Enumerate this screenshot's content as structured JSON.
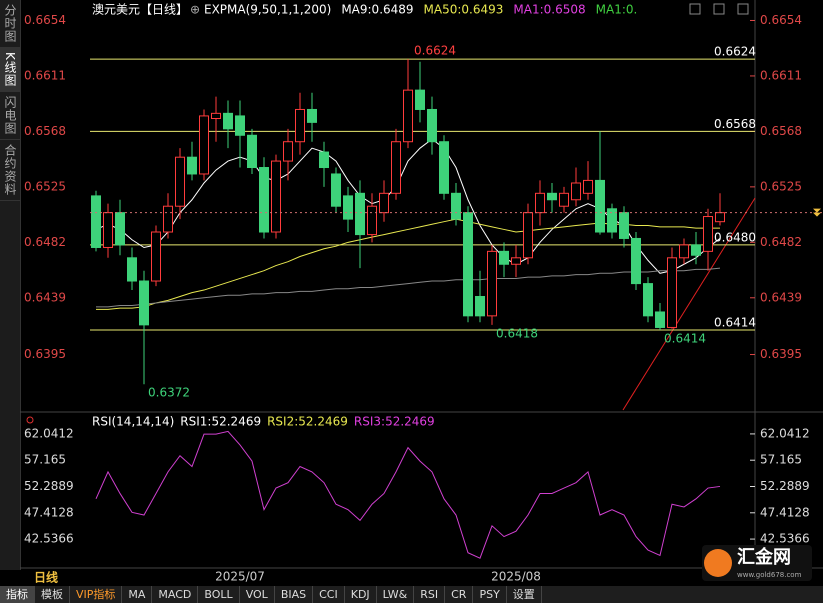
{
  "tabs_left": [
    "分时图",
    "K线图",
    "闪电图",
    "合约资料"
  ],
  "chart_data": [
    {
      "type": "candlestick",
      "title": "澳元美元【日线】",
      "legend": [
        "EXPMA(9,50,1,1,200)",
        "MA9:0.6489",
        "MA50:0.6493",
        "MA1:0.6508",
        "MA1:0."
      ],
      "legend_colors": [
        "#ffffff",
        "#ffffff",
        "#e8e850",
        "#e040e0",
        "#40d040"
      ],
      "categories": [
        null,
        null,
        null,
        null,
        null,
        null,
        null,
        null,
        null,
        null,
        null,
        null,
        "2025/07",
        null,
        null,
        null,
        null,
        null,
        null,
        null,
        null,
        null,
        null,
        null,
        null,
        null,
        null,
        null,
        null,
        null,
        null,
        null,
        null,
        null,
        null,
        "2025/08",
        null,
        null,
        null,
        null,
        null,
        null,
        null,
        null,
        null,
        null,
        null,
        null,
        null,
        null,
        null,
        null,
        null
      ],
      "open": [
        0.6518,
        0.6478,
        0.6505,
        0.647,
        0.6452,
        0.6452,
        0.649,
        0.651,
        0.6548,
        0.6535,
        0.6578,
        0.6582,
        0.658,
        0.6565,
        0.654,
        0.649,
        0.6545,
        0.656,
        0.6585,
        0.6552,
        0.6535,
        0.6518,
        0.652,
        0.6488,
        0.6505,
        0.652,
        0.656,
        0.66,
        0.6585,
        0.656,
        0.652,
        0.6505,
        0.644,
        0.6425,
        0.6475,
        0.6465,
        0.647,
        0.6505,
        0.652,
        0.651,
        0.6515,
        0.652,
        0.653,
        0.6508,
        0.6505,
        0.6485,
        0.645,
        0.6428,
        0.6416,
        0.647,
        0.648,
        0.6475,
        0.6498
      ],
      "high": [
        0.6522,
        0.6512,
        0.6515,
        0.6478,
        0.646,
        0.6495,
        0.652,
        0.6555,
        0.656,
        0.6585,
        0.6595,
        0.6592,
        0.6592,
        0.657,
        0.6548,
        0.655,
        0.657,
        0.6598,
        0.6598,
        0.656,
        0.654,
        0.6525,
        0.653,
        0.652,
        0.653,
        0.657,
        0.6624,
        0.6622,
        0.6595,
        0.6565,
        0.6528,
        0.651,
        0.646,
        0.648,
        0.6482,
        0.648,
        0.6512,
        0.653,
        0.6528,
        0.6525,
        0.654,
        0.6545,
        0.6568,
        0.6512,
        0.651,
        0.649,
        0.6455,
        0.6435,
        0.6478,
        0.6485,
        0.649,
        0.6508,
        0.652
      ],
      "low": [
        0.6475,
        0.647,
        0.6472,
        0.6445,
        0.6372,
        0.6448,
        0.6485,
        0.65,
        0.653,
        0.653,
        0.656,
        0.6555,
        0.654,
        0.6535,
        0.6485,
        0.6485,
        0.653,
        0.655,
        0.656,
        0.6525,
        0.6505,
        0.649,
        0.6462,
        0.6482,
        0.6498,
        0.6515,
        0.6555,
        0.6575,
        0.655,
        0.6515,
        0.6495,
        0.642,
        0.642,
        0.6418,
        0.6455,
        0.6455,
        0.6465,
        0.6495,
        0.6505,
        0.6505,
        0.651,
        0.6515,
        0.6488,
        0.6485,
        0.6478,
        0.6445,
        0.642,
        0.6414,
        0.6415,
        0.6465,
        0.6465,
        0.646,
        0.6495
      ],
      "close": [
        0.6478,
        0.6505,
        0.648,
        0.6452,
        0.6418,
        0.649,
        0.651,
        0.6548,
        0.6535,
        0.658,
        0.6582,
        0.657,
        0.6565,
        0.654,
        0.649,
        0.6545,
        0.656,
        0.6585,
        0.6575,
        0.654,
        0.651,
        0.65,
        0.6488,
        0.651,
        0.652,
        0.656,
        0.66,
        0.6585,
        0.656,
        0.652,
        0.65,
        0.6425,
        0.6425,
        0.6475,
        0.6465,
        0.647,
        0.6505,
        0.652,
        0.6515,
        0.652,
        0.6528,
        0.653,
        0.649,
        0.649,
        0.6485,
        0.645,
        0.6425,
        0.6416,
        0.647,
        0.648,
        0.6472,
        0.6502,
        0.6505
      ],
      "lines": [
        {
          "color": "#ffffff",
          "values": [
            0.6492,
            0.6496,
            0.6492,
            0.6484,
            0.6478,
            0.648,
            0.649,
            0.6505,
            0.6515,
            0.6528,
            0.6538,
            0.6545,
            0.6548,
            0.6545,
            0.6532,
            0.653,
            0.6535,
            0.6545,
            0.6555,
            0.6552,
            0.6545,
            0.653,
            0.6518,
            0.6512,
            0.6515,
            0.6525,
            0.6545,
            0.6555,
            0.6562,
            0.6555,
            0.654,
            0.6515,
            0.6495,
            0.648,
            0.647,
            0.6465,
            0.647,
            0.6482,
            0.6492,
            0.65,
            0.6508,
            0.6512,
            0.6508,
            0.65,
            0.6495,
            0.648,
            0.6468,
            0.6458,
            0.646,
            0.6465,
            0.647,
            0.6478,
            0.6485
          ]
        },
        {
          "color": "#e8e850",
          "values": [
            0.643,
            0.643,
            0.6431,
            0.6431,
            0.6432,
            0.6435,
            0.6437,
            0.644,
            0.6443,
            0.6445,
            0.6448,
            0.6451,
            0.6454,
            0.6457,
            0.646,
            0.6464,
            0.6467,
            0.6471,
            0.6474,
            0.6477,
            0.6479,
            0.6482,
            0.6484,
            0.6486,
            0.6488,
            0.649,
            0.6492,
            0.6494,
            0.6496,
            0.6498,
            0.65,
            0.6498,
            0.6496,
            0.6494,
            0.6492,
            0.649,
            0.6491,
            0.6492,
            0.6493,
            0.6494,
            0.6495,
            0.6496,
            0.6497,
            0.6496,
            0.6496,
            0.6495,
            0.6495,
            0.6494,
            0.6494,
            0.6494,
            0.6493,
            0.6493,
            0.6493
          ]
        },
        {
          "color": "#888888",
          "values": [
            0.6432,
            0.6432,
            0.6433,
            0.6433,
            0.6434,
            0.6435,
            0.6436,
            0.6437,
            0.6438,
            0.6439,
            0.644,
            0.6441,
            0.6441,
            0.6442,
            0.6442,
            0.6443,
            0.6443,
            0.6444,
            0.6444,
            0.6445,
            0.6446,
            0.6446,
            0.6447,
            0.6447,
            0.6448,
            0.6449,
            0.645,
            0.6451,
            0.6452,
            0.6452,
            0.6453,
            0.6453,
            0.6453,
            0.6454,
            0.6454,
            0.6454,
            0.6455,
            0.6455,
            0.6456,
            0.6456,
            0.6457,
            0.6457,
            0.6458,
            0.6458,
            0.6459,
            0.6459,
            0.6459,
            0.646,
            0.646,
            0.646,
            0.6461,
            0.6461,
            0.6462
          ]
        }
      ],
      "up_color": "#ff3c3c",
      "down_color": "#3ed27a",
      "ylim": [
        0.6352,
        0.6666
      ],
      "yticks": [
        0.6654,
        0.6611,
        0.6568,
        0.6525,
        0.6482,
        0.6439,
        0.6395
      ],
      "hlines": [
        0.6624,
        0.6568,
        {
          "value": 0.648,
          "label": "0.6480"
        },
        0.6414
      ],
      "annotations": [
        0.6624,
        0.6372,
        0.6418,
        0.6414
      ]
    },
    {
      "type": "line",
      "title": "RSI(14,14,14)",
      "legend": [
        "RSI1:52.2469",
        "RSI2:52.2469",
        "RSI3:52.2469"
      ],
      "legend_colors": [
        "#ffffff",
        "#e8e850",
        "#e040e0"
      ],
      "color": "#d040d0",
      "values": [
        50,
        55,
        51,
        47.5,
        47,
        51,
        55,
        58,
        56,
        62,
        62,
        62.5,
        60,
        57,
        48,
        52,
        53,
        56,
        55,
        53,
        49,
        48,
        46,
        49,
        51,
        55,
        59.5,
        57,
        55,
        50,
        47,
        40,
        39,
        45,
        43,
        44,
        47,
        51,
        51,
        52,
        53,
        55,
        47,
        48,
        47,
        43,
        40.5,
        39.5,
        49,
        48.5,
        50,
        52,
        52.3
      ],
      "ylim": [
        37.73,
        65.55
      ],
      "yticks": [
        62.0412,
        57.165,
        52.2889,
        47.4128,
        42.5366
      ]
    }
  ],
  "bottom": {
    "period": "日线",
    "tabs": [
      "指标",
      "模板",
      "VIP指标",
      "MA",
      "MACD",
      "BOLL",
      "VOL",
      "BIAS",
      "CCI",
      "KDJ",
      "LW&",
      "RSI",
      "CR",
      "PSY",
      "设置"
    ]
  },
  "logo": {
    "name": "汇金网",
    "url": "www.gold678.com"
  }
}
